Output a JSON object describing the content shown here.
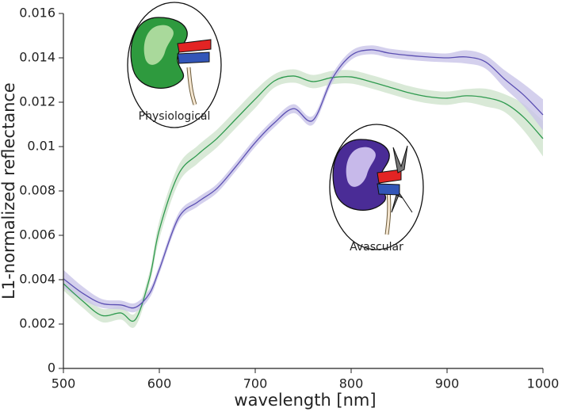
{
  "chart_data": {
    "type": "line",
    "xlabel": "wavelength [nm]",
    "ylabel": "L1-normalized reflectance",
    "x": [
      500,
      520,
      540,
      560,
      575,
      590,
      600,
      620,
      640,
      660,
      680,
      700,
      720,
      740,
      760,
      780,
      800,
      820,
      840,
      860,
      880,
      900,
      920,
      940,
      960,
      980,
      1000
    ],
    "series": [
      {
        "name": "Physiological",
        "color": "#2e9a4e",
        "band_color": "#cfe4cd",
        "values": [
          0.00382,
          0.00304,
          0.00239,
          0.0025,
          0.0022,
          0.0041,
          0.00625,
          0.00875,
          0.00964,
          0.01036,
          0.01125,
          0.01214,
          0.01296,
          0.01318,
          0.01293,
          0.01311,
          0.01314,
          0.01293,
          0.01268,
          0.01243,
          0.01225,
          0.01218,
          0.01229,
          0.01221,
          0.01196,
          0.01132,
          0.01036
        ],
        "error": [
          0.0003,
          0.0003,
          0.0003,
          0.0003,
          0.0003,
          0.0003,
          0.0004,
          0.0004,
          0.0004,
          0.0004,
          0.0004,
          0.0004,
          0.0003,
          0.0003,
          0.0003,
          0.0003,
          0.0003,
          0.0003,
          0.0003,
          0.0003,
          0.0003,
          0.0003,
          0.0003,
          0.0004,
          0.0004,
          0.0006,
          0.0008
        ]
      },
      {
        "name": "Avascular",
        "color": "#5b4fb2",
        "band_color": "#c9c4e9",
        "values": [
          0.00404,
          0.00339,
          0.00293,
          0.00286,
          0.00275,
          0.00339,
          0.00446,
          0.00679,
          0.0075,
          0.00811,
          0.00911,
          0.01018,
          0.01107,
          0.01171,
          0.01118,
          0.01304,
          0.01411,
          0.01436,
          0.01421,
          0.01411,
          0.01404,
          0.014,
          0.01404,
          0.01382,
          0.01304,
          0.01232,
          0.01143
        ],
        "error": [
          0.0004,
          0.0003,
          0.0002,
          0.0002,
          0.0002,
          0.0002,
          0.0002,
          0.0002,
          0.0002,
          0.0002,
          0.0002,
          0.0002,
          0.0002,
          0.0002,
          0.0002,
          0.0002,
          0.0002,
          0.0002,
          0.0002,
          0.0002,
          0.0002,
          0.0002,
          0.0003,
          0.0003,
          0.0004,
          0.0005,
          0.0007
        ]
      }
    ],
    "xlim": [
      500,
      1000
    ],
    "xticks": [
      500,
      600,
      700,
      800,
      900,
      1000
    ],
    "ylim": [
      0,
      0.016
    ],
    "yticks": [
      0,
      0.002,
      0.004,
      0.006,
      0.008,
      0.01,
      0.012,
      0.014,
      0.016
    ],
    "grid": false
  }
}
